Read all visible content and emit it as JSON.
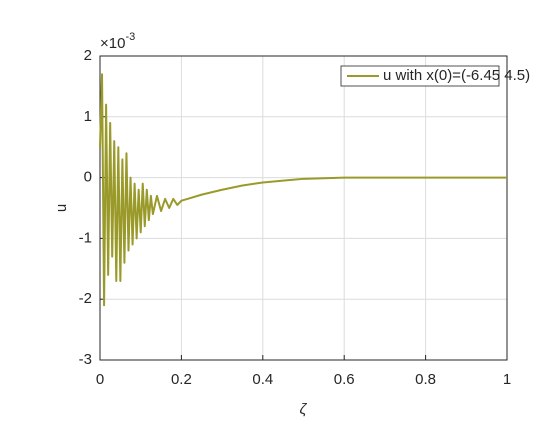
{
  "chart_data": {
    "type": "line",
    "x_label": "ζ",
    "y_label": "u",
    "y_exponent_base": "×10",
    "y_exponent_power": "-3",
    "x": [
      0,
      0.005,
      0.01,
      0.015,
      0.02,
      0.025,
      0.03,
      0.035,
      0.04,
      0.045,
      0.05,
      0.055,
      0.06,
      0.065,
      0.07,
      0.075,
      0.08,
      0.085,
      0.09,
      0.095,
      0.1,
      0.105,
      0.11,
      0.115,
      0.12,
      0.125,
      0.13,
      0.14,
      0.15,
      0.16,
      0.17,
      0.18,
      0.19,
      0.2,
      0.22,
      0.25,
      0.3,
      0.35,
      0.4,
      0.45,
      0.5,
      0.55,
      0.6,
      0.7,
      0.8,
      0.9,
      1
    ],
    "series": [
      {
        "name": "u with x(0)=(-6.45 4.5)",
        "color": "#9a9a2a",
        "values": [
          0.5,
          1.7,
          -2.1,
          1.2,
          -1.6,
          0.9,
          -1.3,
          0.6,
          -1.7,
          0.5,
          -1.7,
          0.3,
          -1.4,
          0.4,
          -1.2,
          0.0,
          -1.1,
          -0.1,
          -1.0,
          -0.2,
          -0.9,
          -0.1,
          -0.8,
          -0.2,
          -0.7,
          -0.3,
          -0.6,
          -0.3,
          -0.55,
          -0.35,
          -0.5,
          -0.35,
          -0.45,
          -0.38,
          -0.34,
          -0.28,
          -0.2,
          -0.13,
          -0.08,
          -0.05,
          -0.02,
          -0.01,
          0,
          0,
          0,
          0,
          0
        ]
      }
    ],
    "xlim": [
      0,
      1
    ],
    "ylim": [
      -3,
      2
    ],
    "xticks": [
      0,
      0.2,
      0.4,
      0.6,
      0.8,
      1
    ],
    "yticks": [
      -3,
      -2,
      -1,
      0,
      1,
      2
    ],
    "grid": true,
    "legend_position": "top-right"
  }
}
